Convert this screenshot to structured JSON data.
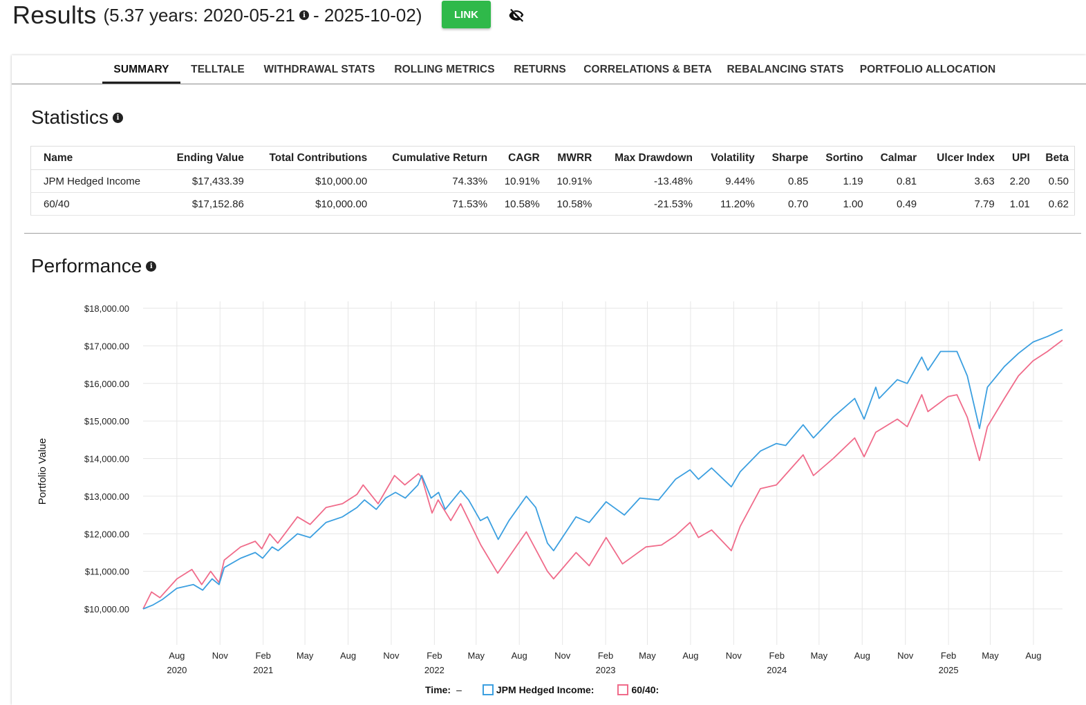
{
  "header": {
    "title": "Results",
    "range": "(5.37 years: 2020-05-21",
    "range_end": "- 2025-10-02)",
    "link_label": "LINK"
  },
  "tabs": [
    "SUMMARY",
    "TELLTALE",
    "WITHDRAWAL STATS",
    "ROLLING METRICS",
    "RETURNS",
    "CORRELATIONS & BETA",
    "REBALANCING STATS",
    "PORTFOLIO ALLOCATION"
  ],
  "statistics": {
    "title": "Statistics",
    "columns": [
      "Name",
      "Ending Value",
      "Total Contributions",
      "Cumulative Return",
      "CAGR",
      "MWRR",
      "Max Drawdown",
      "Volatility",
      "Sharpe",
      "Sortino",
      "Calmar",
      "Ulcer Index",
      "UPI",
      "Beta"
    ],
    "rows": [
      [
        "JPM Hedged Income",
        "$17,433.39",
        "$10,000.00",
        "74.33%",
        "10.91%",
        "10.91%",
        "-13.48%",
        "9.44%",
        "0.85",
        "1.19",
        "0.81",
        "3.63",
        "2.20",
        "0.50"
      ],
      [
        "60/40",
        "$17,152.86",
        "$10,000.00",
        "71.53%",
        "10.58%",
        "10.58%",
        "-21.53%",
        "11.20%",
        "0.70",
        "1.00",
        "0.49",
        "7.79",
        "1.01",
        "0.62"
      ]
    ]
  },
  "performance": {
    "title": "Performance"
  },
  "chart_data": {
    "type": "line",
    "ylabel": "Portfolio Value",
    "ylim": [
      10000,
      18000
    ],
    "y_ticks": [
      "$10,000.00",
      "$11,000.00",
      "$12,000.00",
      "$13,000.00",
      "$14,000.00",
      "$15,000.00",
      "$16,000.00",
      "$17,000.00",
      "$18,000.00"
    ],
    "x_ticks": [
      {
        "date": "2020-08",
        "label": "Aug",
        "year": "2020"
      },
      {
        "date": "2020-11",
        "label": "Nov",
        "year": ""
      },
      {
        "date": "2021-02",
        "label": "Feb",
        "year": "2021"
      },
      {
        "date": "2021-05",
        "label": "May",
        "year": ""
      },
      {
        "date": "2021-08",
        "label": "Aug",
        "year": ""
      },
      {
        "date": "2021-11",
        "label": "Nov",
        "year": ""
      },
      {
        "date": "2022-02",
        "label": "Feb",
        "year": "2022"
      },
      {
        "date": "2022-05",
        "label": "May",
        "year": ""
      },
      {
        "date": "2022-08",
        "label": "Aug",
        "year": ""
      },
      {
        "date": "2022-11",
        "label": "Nov",
        "year": ""
      },
      {
        "date": "2023-02",
        "label": "Feb",
        "year": "2023"
      },
      {
        "date": "2023-05",
        "label": "May",
        "year": ""
      },
      {
        "date": "2023-08",
        "label": "Aug",
        "year": ""
      },
      {
        "date": "2023-11",
        "label": "Nov",
        "year": ""
      },
      {
        "date": "2024-02",
        "label": "Feb",
        "year": "2024"
      },
      {
        "date": "2024-05",
        "label": "May",
        "year": ""
      },
      {
        "date": "2024-08",
        "label": "Aug",
        "year": ""
      },
      {
        "date": "2024-11",
        "label": "Nov",
        "year": ""
      },
      {
        "date": "2025-02",
        "label": "Feb",
        "year": "2025"
      },
      {
        "date": "2025-05",
        "label": "May",
        "year": ""
      },
      {
        "date": "2025-08",
        "label": "Aug",
        "year": ""
      }
    ],
    "legend": {
      "time_label": "Time:",
      "time_value": "–"
    },
    "series": [
      {
        "name": "JPM Hedged Income:",
        "color": "#3b9fe0",
        "points": [
          [
            "2020-05-21",
            10000
          ],
          [
            "2020-06-10",
            10100
          ],
          [
            "2020-07-01",
            10250
          ],
          [
            "2020-08-01",
            10550
          ],
          [
            "2020-09-05",
            10650
          ],
          [
            "2020-09-25",
            10500
          ],
          [
            "2020-10-15",
            10800
          ],
          [
            "2020-10-30",
            10650
          ],
          [
            "2020-11-10",
            11100
          ],
          [
            "2020-12-15",
            11350
          ],
          [
            "2021-01-15",
            11500
          ],
          [
            "2021-01-31",
            11350
          ],
          [
            "2021-02-20",
            11650
          ],
          [
            "2021-03-05",
            11550
          ],
          [
            "2021-04-15",
            12000
          ],
          [
            "2021-05-12",
            11900
          ],
          [
            "2021-06-15",
            12300
          ],
          [
            "2021-07-20",
            12450
          ],
          [
            "2021-08-20",
            12700
          ],
          [
            "2021-09-05",
            12900
          ],
          [
            "2021-09-30",
            12650
          ],
          [
            "2021-10-20",
            12950
          ],
          [
            "2021-11-10",
            13100
          ],
          [
            "2021-12-01",
            12950
          ],
          [
            "2021-12-28",
            13300
          ],
          [
            "2022-01-05",
            13550
          ],
          [
            "2022-01-25",
            12950
          ],
          [
            "2022-02-10",
            13100
          ],
          [
            "2022-02-24",
            12650
          ],
          [
            "2022-03-29",
            13150
          ],
          [
            "2022-04-15",
            12900
          ],
          [
            "2022-05-10",
            12350
          ],
          [
            "2022-05-25",
            12450
          ],
          [
            "2022-06-17",
            11850
          ],
          [
            "2022-07-10",
            12350
          ],
          [
            "2022-08-16",
            13000
          ],
          [
            "2022-09-05",
            12700
          ],
          [
            "2022-09-30",
            11750
          ],
          [
            "2022-10-13",
            11550
          ],
          [
            "2022-11-30",
            12450
          ],
          [
            "2022-12-28",
            12300
          ],
          [
            "2023-02-02",
            12850
          ],
          [
            "2023-03-13",
            12500
          ],
          [
            "2023-04-15",
            12950
          ],
          [
            "2023-05-25",
            12900
          ],
          [
            "2023-06-30",
            13450
          ],
          [
            "2023-07-31",
            13700
          ],
          [
            "2023-08-18",
            13450
          ],
          [
            "2023-09-15",
            13750
          ],
          [
            "2023-10-27",
            13250
          ],
          [
            "2023-11-15",
            13650
          ],
          [
            "2023-12-28",
            14200
          ],
          [
            "2024-01-31",
            14400
          ],
          [
            "2024-02-20",
            14350
          ],
          [
            "2024-03-28",
            14900
          ],
          [
            "2024-04-19",
            14550
          ],
          [
            "2024-05-31",
            15100
          ],
          [
            "2024-07-16",
            15600
          ],
          [
            "2024-08-05",
            15050
          ],
          [
            "2024-08-30",
            15900
          ],
          [
            "2024-09-06",
            15600
          ],
          [
            "2024-10-15",
            16100
          ],
          [
            "2024-11-05",
            16000
          ],
          [
            "2024-12-06",
            16700
          ],
          [
            "2024-12-19",
            16350
          ],
          [
            "2025-01-15",
            16850
          ],
          [
            "2025-02-19",
            16850
          ],
          [
            "2025-03-13",
            16200
          ],
          [
            "2025-04-08",
            14800
          ],
          [
            "2025-04-25",
            15900
          ],
          [
            "2025-05-31",
            16450
          ],
          [
            "2025-06-30",
            16800
          ],
          [
            "2025-07-31",
            17100
          ],
          [
            "2025-08-31",
            17250
          ],
          [
            "2025-10-02",
            17433
          ]
        ]
      },
      {
        "name": "60/40:",
        "color": "#f06b8a",
        "points": [
          [
            "2020-05-21",
            10000
          ],
          [
            "2020-06-08",
            10450
          ],
          [
            "2020-06-26",
            10300
          ],
          [
            "2020-08-01",
            10800
          ],
          [
            "2020-09-02",
            11050
          ],
          [
            "2020-09-23",
            10650
          ],
          [
            "2020-10-12",
            11000
          ],
          [
            "2020-10-30",
            10700
          ],
          [
            "2020-11-10",
            11300
          ],
          [
            "2020-12-15",
            11650
          ],
          [
            "2021-01-15",
            11800
          ],
          [
            "2021-01-29",
            11600
          ],
          [
            "2021-02-15",
            12000
          ],
          [
            "2021-03-04",
            11750
          ],
          [
            "2021-04-15",
            12450
          ],
          [
            "2021-05-12",
            12250
          ],
          [
            "2021-06-15",
            12700
          ],
          [
            "2021-07-20",
            12800
          ],
          [
            "2021-08-20",
            13050
          ],
          [
            "2021-09-02",
            13300
          ],
          [
            "2021-10-04",
            12800
          ],
          [
            "2021-11-08",
            13550
          ],
          [
            "2021-11-30",
            13300
          ],
          [
            "2021-12-29",
            13600
          ],
          [
            "2022-01-05",
            13500
          ],
          [
            "2022-01-27",
            12550
          ],
          [
            "2022-02-09",
            12900
          ],
          [
            "2022-03-08",
            12350
          ],
          [
            "2022-03-29",
            12800
          ],
          [
            "2022-05-11",
            11700
          ],
          [
            "2022-06-16",
            10950
          ],
          [
            "2022-08-16",
            12050
          ],
          [
            "2022-09-30",
            11000
          ],
          [
            "2022-10-13",
            10800
          ],
          [
            "2022-11-30",
            11500
          ],
          [
            "2022-12-28",
            11150
          ],
          [
            "2023-02-02",
            11900
          ],
          [
            "2023-03-09",
            11200
          ],
          [
            "2023-04-28",
            11650
          ],
          [
            "2023-05-31",
            11700
          ],
          [
            "2023-06-30",
            11950
          ],
          [
            "2023-07-31",
            12300
          ],
          [
            "2023-08-18",
            11900
          ],
          [
            "2023-09-15",
            12100
          ],
          [
            "2023-10-27",
            11550
          ],
          [
            "2023-11-15",
            12200
          ],
          [
            "2023-12-28",
            13200
          ],
          [
            "2024-01-31",
            13300
          ],
          [
            "2024-03-28",
            14100
          ],
          [
            "2024-04-19",
            13550
          ],
          [
            "2024-05-31",
            14000
          ],
          [
            "2024-07-16",
            14550
          ],
          [
            "2024-08-05",
            14050
          ],
          [
            "2024-08-30",
            14700
          ],
          [
            "2024-10-15",
            15050
          ],
          [
            "2024-11-05",
            14850
          ],
          [
            "2024-12-06",
            15700
          ],
          [
            "2024-12-19",
            15250
          ],
          [
            "2025-01-31",
            15650
          ],
          [
            "2025-02-19",
            15700
          ],
          [
            "2025-03-13",
            15100
          ],
          [
            "2025-04-08",
            13950
          ],
          [
            "2025-04-25",
            14850
          ],
          [
            "2025-05-31",
            15600
          ],
          [
            "2025-06-30",
            16200
          ],
          [
            "2025-07-31",
            16600
          ],
          [
            "2025-08-31",
            16850
          ],
          [
            "2025-10-02",
            17153
          ]
        ]
      }
    ]
  }
}
